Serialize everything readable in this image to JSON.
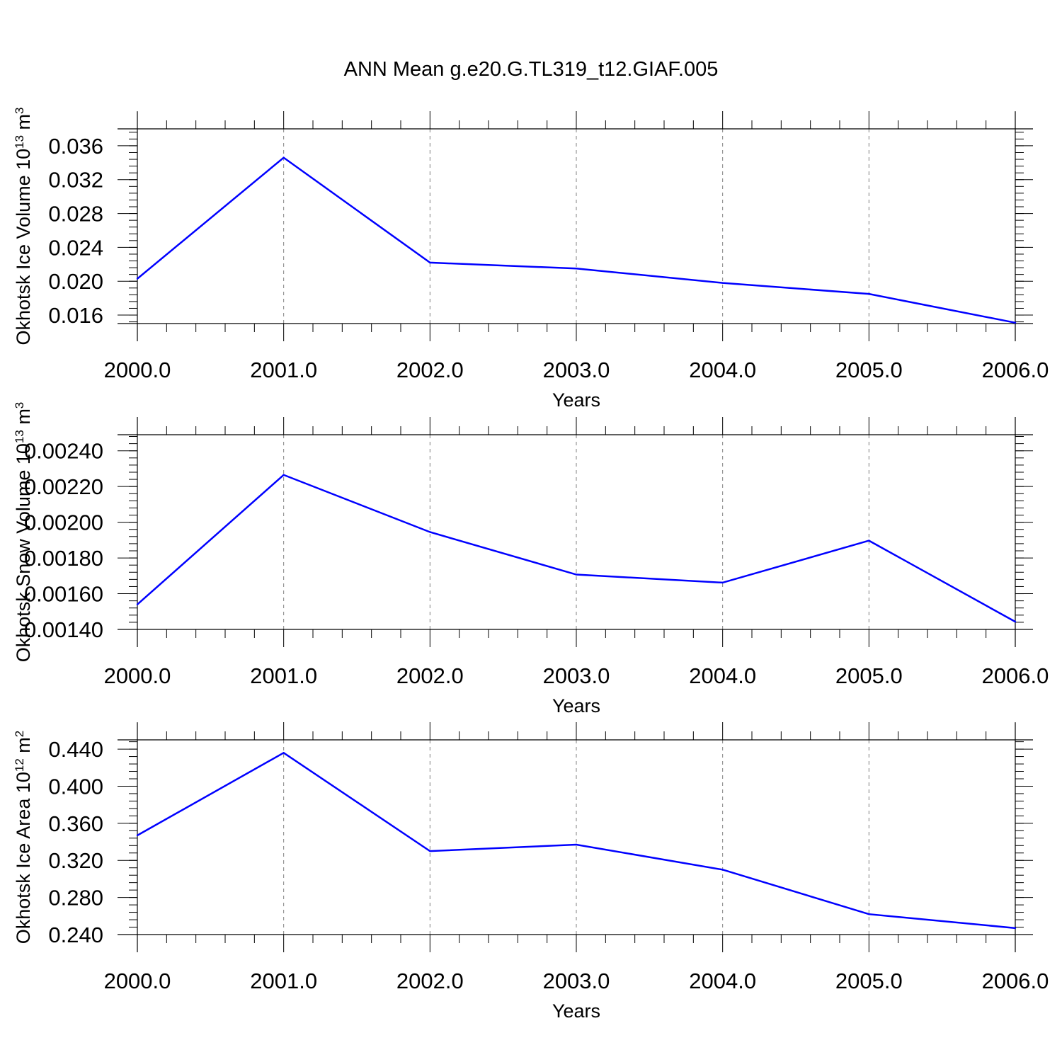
{
  "title": "ANN Mean g.e20.G.TL319_t12.GIAF.005",
  "colors": {
    "series": "#0000ff",
    "axes": "#000000",
    "grid": "#808080",
    "background": "#ffffff"
  },
  "chart_data": [
    {
      "type": "line",
      "ylabel": {
        "base": "Okhotsk Ice Volume 10",
        "exp": "13",
        "unit": " m",
        "unit_exp": "3"
      },
      "xlabel": "Years",
      "x": [
        2000,
        2001,
        2002,
        2003,
        2004,
        2005,
        2006
      ],
      "values": [
        0.0203,
        0.0346,
        0.0222,
        0.0215,
        0.0198,
        0.0185,
        0.0151
      ],
      "xlim": [
        2000,
        2006
      ],
      "ylim": [
        0.015,
        0.038
      ],
      "yticks": [
        0.016,
        0.02,
        0.024,
        0.028,
        0.032,
        0.036
      ],
      "ytick_labels": [
        "0.016",
        "0.020",
        "0.024",
        "0.028",
        "0.032",
        "0.036"
      ],
      "xticks": [
        2000,
        2001,
        2002,
        2003,
        2004,
        2005,
        2006
      ],
      "xtick_labels": [
        "2000.0",
        "2001.0",
        "2002.0",
        "2003.0",
        "2004.0",
        "2005.0",
        "2006.0"
      ],
      "grid": "vertical dashed at major x ticks"
    },
    {
      "type": "line",
      "ylabel": {
        "base": "Okhotsk Snow Volume 10",
        "exp": "13",
        "unit": " m",
        "unit_exp": "3"
      },
      "xlabel": "Years",
      "x": [
        2000,
        2001,
        2002,
        2003,
        2004,
        2005,
        2006
      ],
      "values": [
        0.00154,
        0.002265,
        0.001945,
        0.001707,
        0.001662,
        0.001897,
        0.001443
      ],
      "xlim": [
        2000,
        2006
      ],
      "ylim": [
        0.0014,
        0.00249
      ],
      "yticks": [
        0.0014,
        0.0016,
        0.0018,
        0.002,
        0.0022,
        0.0024
      ],
      "ytick_labels": [
        "0.00140",
        "0.00160",
        "0.00180",
        "0.00200",
        "0.00220",
        "0.00240"
      ],
      "xticks": [
        2000,
        2001,
        2002,
        2003,
        2004,
        2005,
        2006
      ],
      "xtick_labels": [
        "2000.0",
        "2001.0",
        "2002.0",
        "2003.0",
        "2004.0",
        "2005.0",
        "2006.0"
      ],
      "grid": "vertical dashed at major x ticks"
    },
    {
      "type": "line",
      "ylabel": {
        "base": "Okhotsk Ice Area 10",
        "exp": "12",
        "unit": " m",
        "unit_exp": "2"
      },
      "xlabel": "Years",
      "x": [
        2000,
        2001,
        2002,
        2003,
        2004,
        2005,
        2006
      ],
      "values": [
        0.347,
        0.436,
        0.33,
        0.337,
        0.31,
        0.262,
        0.247
      ],
      "xlim": [
        2000,
        2006
      ],
      "ylim": [
        0.24,
        0.45
      ],
      "yticks": [
        0.24,
        0.28,
        0.32,
        0.36,
        0.4,
        0.44
      ],
      "ytick_labels": [
        "0.240",
        "0.280",
        "0.320",
        "0.360",
        "0.400",
        "0.440"
      ],
      "xticks": [
        2000,
        2001,
        2002,
        2003,
        2004,
        2005,
        2006
      ],
      "xtick_labels": [
        "2000.0",
        "2001.0",
        "2002.0",
        "2003.0",
        "2004.0",
        "2005.0",
        "2006.0"
      ],
      "grid": "vertical dashed at major x ticks"
    }
  ]
}
